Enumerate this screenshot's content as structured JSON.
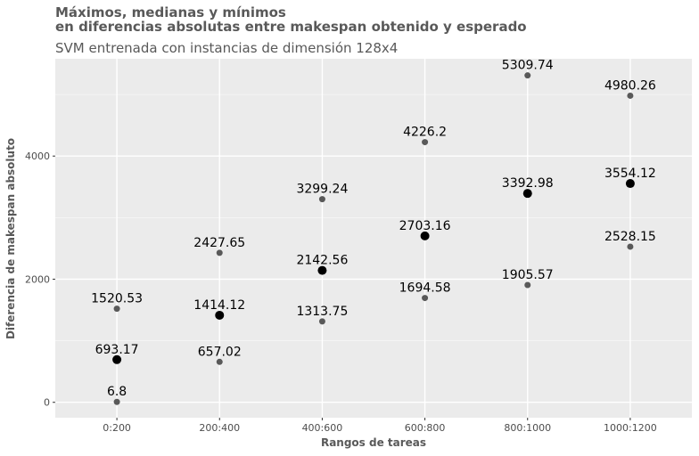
{
  "chart_data": {
    "type": "scatter",
    "title_line1": "Máximos, medianas y mínimos",
    "title_line2": "en diferencias absolutas entre makespan obtenido y esperado",
    "subtitle": "SVM entrenada con instancias de dimensión 128x4",
    "xlabel": "Rangos de tareas",
    "ylabel": "Diferencia de makespan absoluto",
    "categories": [
      "0:200",
      "200:400",
      "400:600",
      "600:800",
      "800:1000",
      "1000:1200"
    ],
    "y_ticks": [
      0,
      2000,
      4000
    ],
    "ylim": [
      -250,
      5580
    ],
    "grid": true,
    "series": [
      {
        "values": [
          1520.53,
          2427.65,
          3299.24,
          4226.2,
          5309.74,
          4980.26
        ],
        "labels": [
          "1520.53",
          "2427.65",
          "3299.24",
          "4226.2",
          "5309.74",
          "4980.26"
        ],
        "color": "#595959"
      },
      {
        "values": [
          693.17,
          1414.12,
          2142.56,
          2703.16,
          3392.98,
          3554.12
        ],
        "labels": [
          "693.17",
          "1414.12",
          "2142.56",
          "2703.16",
          "3392.98",
          "3554.12"
        ],
        "color": "#000000"
      },
      {
        "values": [
          6.8,
          657.02,
          1313.75,
          1694.58,
          1905.57,
          2528.15
        ],
        "labels": [
          "6.8",
          "657.02",
          "1313.75",
          "1694.58",
          "1905.57",
          "2528.15"
        ],
        "color": "#595959"
      }
    ]
  }
}
